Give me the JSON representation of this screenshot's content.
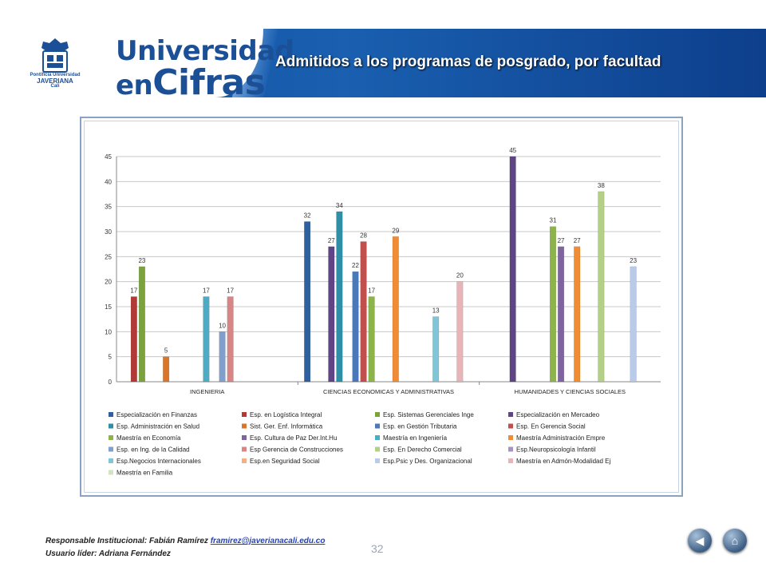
{
  "header": {
    "university_small": [
      "Pontificia Universidad",
      "JAVERIANA",
      "Cali"
    ],
    "brand_line1": "Universidad",
    "brand_line2a": "en",
    "brand_line2b": "Cifras",
    "title": "Admitidos a los programas de posgrado, por facultad"
  },
  "chart_data": {
    "type": "bar",
    "categories": [
      "INGENIERIA",
      "CIENCIAS ECONOMICAS Y ADMINISTRATIVAS",
      "HUMANIDADES Y CIENCIAS SOCIALES"
    ],
    "ylim": [
      0,
      45
    ],
    "yticks": [
      0,
      5,
      10,
      15,
      20,
      25,
      30,
      35,
      40,
      45
    ],
    "grid": true,
    "legend_position": "bottom",
    "series": [
      {
        "name": "Especialización en Finanzas",
        "color": "#2e5f9e",
        "values": [
          null,
          32,
          null
        ]
      },
      {
        "name": "Esp. en Logística Integral",
        "color": "#b23a36",
        "values": [
          17,
          null,
          null
        ]
      },
      {
        "name": "Esp. Sistemas Gerenciales Inge",
        "color": "#7aa33c",
        "values": [
          23,
          null,
          null
        ]
      },
      {
        "name": "Especialización en Mercadeo",
        "color": "#5f4486",
        "values": [
          null,
          27,
          45
        ]
      },
      {
        "name": "Esp. Administración en Salud",
        "color": "#2f8fa6",
        "values": [
          null,
          34,
          null
        ]
      },
      {
        "name": "Sist. Ger. Enf. Informática",
        "color": "#d9762a",
        "values": [
          5,
          null,
          null
        ]
      },
      {
        "name": "Esp. en Gestión Tributaria",
        "color": "#4a78b8",
        "values": [
          null,
          22,
          null
        ]
      },
      {
        "name": "Esp. En Gerencia Social",
        "color": "#c0504d",
        "values": [
          null,
          28,
          null
        ]
      },
      {
        "name": "Maestría en Economía",
        "color": "#8cb44a",
        "values": [
          null,
          17,
          31
        ]
      },
      {
        "name": "Esp. Cultura de Paz Der.Int.Hu",
        "color": "#8064a2",
        "values": [
          null,
          null,
          27
        ]
      },
      {
        "name": "Maestría en Ingeniería",
        "color": "#4bacc6",
        "values": [
          17,
          null,
          null
        ]
      },
      {
        "name": "Maestría Administración Empre",
        "color": "#f08c33",
        "values": [
          null,
          29,
          27
        ]
      },
      {
        "name": "Esp. en Ing. de la Calidad",
        "color": "#7f9fcf",
        "values": [
          10,
          null,
          null
        ]
      },
      {
        "name": "Esp Gerencia de Construcciones",
        "color": "#d98585",
        "values": [
          17,
          null,
          null
        ]
      },
      {
        "name": "Esp. En Derecho Comercial",
        "color": "#b4cf88",
        "values": [
          null,
          null,
          38
        ]
      },
      {
        "name": "Esp.Neuropsicología Infantil",
        "color": "#a493c3",
        "values": [
          null,
          null,
          null
        ]
      },
      {
        "name": "Esp.Negocios Internacionales",
        "color": "#7fc6d8",
        "values": [
          null,
          13,
          null
        ]
      },
      {
        "name": "Esp.en Seguridad Social",
        "color": "#f5b07f",
        "values": [
          null,
          null,
          null
        ]
      },
      {
        "name": "Esp.Psic y Des. Organizacional",
        "color": "#b8cbe8",
        "values": [
          null,
          null,
          23
        ]
      },
      {
        "name": "Maestría en Admón-Modalidad Ej",
        "color": "#e8b4b8",
        "values": [
          null,
          20,
          null
        ]
      },
      {
        "name": "Maestría en Familia",
        "color": "#d4e3bf",
        "values": [
          null,
          null,
          null
        ]
      }
    ]
  },
  "footer": {
    "responsable_label": "Responsable Institucional: Fabián Ramírez",
    "email": "framirez@javerianacali.edu.co",
    "usuario_label": "Usuario líder: Adriana Fernández",
    "page_number": "32"
  },
  "nav": {
    "back_icon": "back-arrow-icon",
    "home_icon": "home-icon"
  }
}
